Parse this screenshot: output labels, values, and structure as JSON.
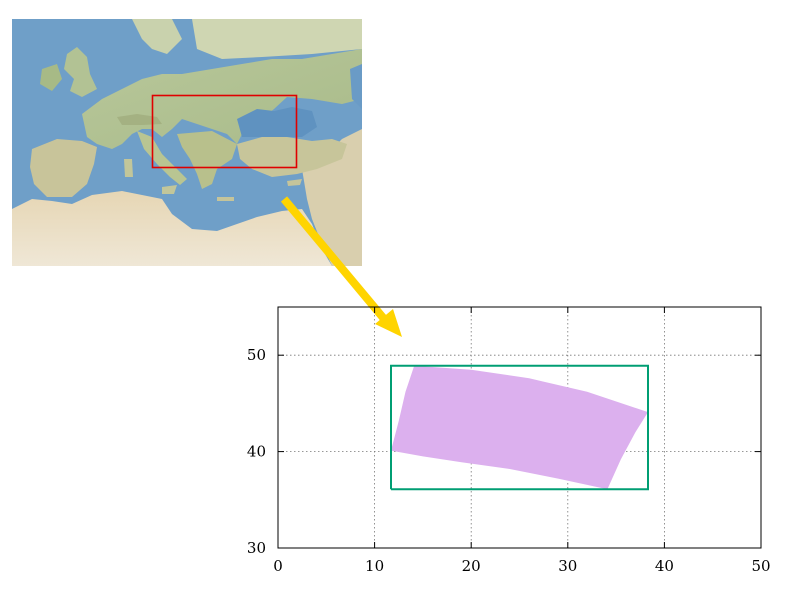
{
  "map": {
    "region": "Mediterranean and Europe relief map",
    "highlight_color": "#e00000"
  },
  "arrow": {
    "color": "#ffd400"
  },
  "chart_data": {
    "type": "area",
    "title": "",
    "xlabel": "",
    "ylabel": "",
    "xlim": [
      0,
      50
    ],
    "ylim": [
      30,
      55
    ],
    "xticks": [
      0,
      10,
      20,
      30,
      40,
      50
    ],
    "yticks": [
      30,
      40,
      50
    ],
    "grid": true,
    "series": [
      {
        "kind": "bounding-box",
        "color": "#009e73",
        "x": [
          11.7,
          38.3,
          38.3,
          11.7,
          11.7
        ],
        "y": [
          36.1,
          36.1,
          48.9,
          48.9,
          36.1
        ]
      },
      {
        "kind": "filled-polygon",
        "color": "#dcb0ee",
        "x": [
          14.1,
          20,
          26,
          32,
          38.3,
          37,
          35.5,
          34.1,
          29,
          24,
          19,
          15,
          11.7,
          12.5,
          13.2,
          14.1
        ],
        "y": [
          48.9,
          48.5,
          47.6,
          46.2,
          44.1,
          42,
          39.2,
          36.1,
          37.2,
          38.2,
          38.9,
          39.5,
          40.1,
          43.2,
          46.2,
          48.9
        ]
      }
    ]
  }
}
